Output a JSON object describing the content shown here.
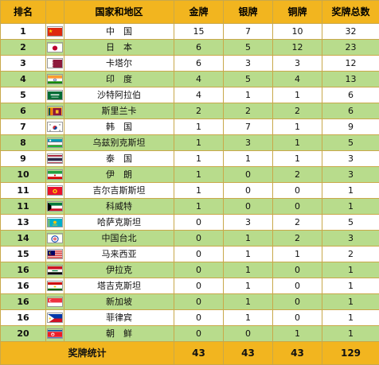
{
  "headers": {
    "rank": "排名",
    "country": "国家和地区",
    "gold": "金牌",
    "silver": "银牌",
    "bronze": "铜牌",
    "total": "奖牌总数"
  },
  "rows": [
    {
      "rank": "1",
      "country": "中　国",
      "gold": "15",
      "silver": "7",
      "bronze": "10",
      "total": "32",
      "flag": "china-flag-icon"
    },
    {
      "rank": "2",
      "country": "日　本",
      "gold": "6",
      "silver": "5",
      "bronze": "12",
      "total": "23",
      "flag": "japan-flag-icon"
    },
    {
      "rank": "3",
      "country": "卡塔尔",
      "gold": "6",
      "silver": "3",
      "bronze": "3",
      "total": "12",
      "flag": "qatar-flag-icon"
    },
    {
      "rank": "4",
      "country": "印　度",
      "gold": "4",
      "silver": "5",
      "bronze": "4",
      "total": "13",
      "flag": "india-flag-icon"
    },
    {
      "rank": "5",
      "country": "沙特阿拉伯",
      "gold": "4",
      "silver": "1",
      "bronze": "1",
      "total": "6",
      "flag": "saudi-arabia-flag-icon"
    },
    {
      "rank": "6",
      "country": "斯里兰卡",
      "gold": "2",
      "silver": "2",
      "bronze": "2",
      "total": "6",
      "flag": "sri-lanka-flag-icon"
    },
    {
      "rank": "7",
      "country": "韩　国",
      "gold": "1",
      "silver": "7",
      "bronze": "1",
      "total": "9",
      "flag": "south-korea-flag-icon"
    },
    {
      "rank": "8",
      "country": "乌兹别克斯坦",
      "gold": "1",
      "silver": "3",
      "bronze": "1",
      "total": "5",
      "flag": "uzbekistan-flag-icon"
    },
    {
      "rank": "9",
      "country": "泰　国",
      "gold": "1",
      "silver": "1",
      "bronze": "1",
      "total": "3",
      "flag": "thailand-flag-icon"
    },
    {
      "rank": "10",
      "country": "伊　朗",
      "gold": "1",
      "silver": "0",
      "bronze": "2",
      "total": "3",
      "flag": "iran-flag-icon"
    },
    {
      "rank": "11",
      "country": "吉尔吉斯斯坦",
      "gold": "1",
      "silver": "0",
      "bronze": "0",
      "total": "1",
      "flag": "kyrgyzstan-flag-icon"
    },
    {
      "rank": "11",
      "country": "科威特",
      "gold": "1",
      "silver": "0",
      "bronze": "0",
      "total": "1",
      "flag": "kuwait-flag-icon"
    },
    {
      "rank": "13",
      "country": "哈萨克斯坦",
      "gold": "0",
      "silver": "3",
      "bronze": "2",
      "total": "5",
      "flag": "kazakhstan-flag-icon"
    },
    {
      "rank": "14",
      "country": "中国台北",
      "gold": "0",
      "silver": "1",
      "bronze": "2",
      "total": "3",
      "flag": "chinese-taipei-flag-icon"
    },
    {
      "rank": "15",
      "country": "马来西亚",
      "gold": "0",
      "silver": "1",
      "bronze": "1",
      "total": "2",
      "flag": "malaysia-flag-icon"
    },
    {
      "rank": "16",
      "country": "伊拉克",
      "gold": "0",
      "silver": "1",
      "bronze": "0",
      "total": "1",
      "flag": "iraq-flag-icon"
    },
    {
      "rank": "16",
      "country": "塔吉克斯坦",
      "gold": "0",
      "silver": "1",
      "bronze": "0",
      "total": "1",
      "flag": "tajikistan-flag-icon"
    },
    {
      "rank": "16",
      "country": "新加坡",
      "gold": "0",
      "silver": "1",
      "bronze": "0",
      "total": "1",
      "flag": "singapore-flag-icon"
    },
    {
      "rank": "16",
      "country": "菲律宾",
      "gold": "0",
      "silver": "1",
      "bronze": "0",
      "total": "1",
      "flag": "philippines-flag-icon"
    },
    {
      "rank": "20",
      "country": "朝　鲜",
      "gold": "0",
      "silver": "0",
      "bronze": "1",
      "total": "1",
      "flag": "north-korea-flag-icon"
    }
  ],
  "footer": {
    "label": "奖牌统计",
    "gold": "43",
    "silver": "43",
    "bronze": "43",
    "total": "129"
  },
  "colors": {
    "header": "#f2b51f",
    "stripe": "#b8dc8c",
    "border": "#c9a84a"
  }
}
